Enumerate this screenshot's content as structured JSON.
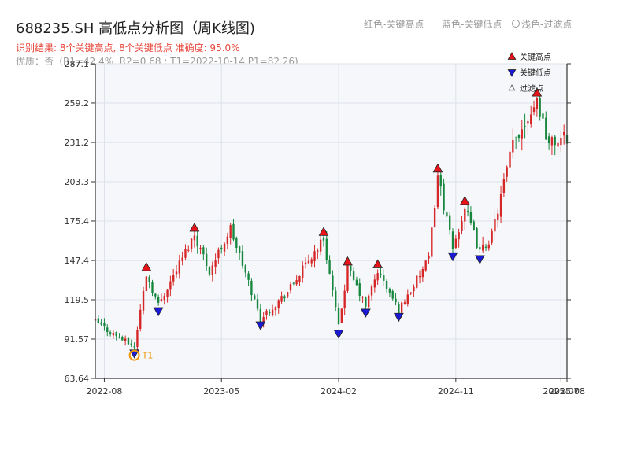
{
  "header": {
    "title": "688235.SH 高低点分析图（周K线图)",
    "subtitle_result": "识别结果: 8个关键高点, 8个关键低点  准确度: 95.0%",
    "subtitle_quality": "优质：否（R1=42.4%, R2=0.68 ; T1=2022-10-14 P1=82.26)"
  },
  "top_legend": {
    "red": "红色-关键高点",
    "blue": "蓝色-关键低点",
    "light": "浅色-过滤点"
  },
  "colors": {
    "up": "#d62728",
    "down": "#17873f",
    "high_marker": "#e8141a",
    "low_marker": "#1a1ad6",
    "t1_marker": "#f0960a",
    "plot_bg": "#f5f7fa",
    "grid": "#dde2ea"
  },
  "chart_data": {
    "type": "candlestick",
    "xlabel": "",
    "ylabel": "",
    "ylim": [
      63.64,
      287.1
    ],
    "y_ticks": [
      "63.64",
      "91.57",
      "119.5",
      "147.4",
      "175.4",
      "203.3",
      "231.2",
      "259.2",
      "287.1"
    ],
    "x_range": [
      "2022-07-15",
      "2025-07-18"
    ],
    "x_ticks": [
      {
        "date": "2022-08-05",
        "label": "2022-08"
      },
      {
        "date": "2023-05-05",
        "label": "2023-05"
      },
      {
        "date": "2024-02-02",
        "label": "2024-02"
      },
      {
        "date": "2024-11-01",
        "label": "2024-11"
      },
      {
        "date": "2025-07-04",
        "label": "2025-07"
      },
      {
        "date": "2025-07-18",
        "label": "2025-08"
      }
    ],
    "grid": true,
    "legend": {
      "placement": "top-right",
      "items": [
        {
          "label": "关键高点",
          "marker": "triangle-up",
          "color": "#e8141a"
        },
        {
          "label": "关键低点",
          "marker": "triangle-down",
          "color": "#1a1ad6"
        },
        {
          "label": "过滤点",
          "marker": "triangle-up-open",
          "color": "#999999"
        }
      ]
    },
    "anchors": [
      [
        "2022-07-15",
        104
      ],
      [
        "2022-08-12",
        98
      ],
      [
        "2022-10-14",
        86
      ],
      [
        "2022-11-11",
        138
      ],
      [
        "2022-12-09",
        116
      ],
      [
        "2023-03-03",
        166
      ],
      [
        "2023-04-07",
        140
      ],
      [
        "2023-05-26",
        170
      ],
      [
        "2023-08-04",
        106
      ],
      [
        "2023-10-06",
        125
      ],
      [
        "2023-12-29",
        163
      ],
      [
        "2024-02-02",
        100
      ],
      [
        "2024-02-23",
        142
      ],
      [
        "2024-04-05",
        115
      ],
      [
        "2024-05-03",
        140
      ],
      [
        "2024-06-21",
        112
      ],
      [
        "2024-08-30",
        148
      ],
      [
        "2024-09-20",
        208
      ],
      [
        "2024-10-25",
        155
      ],
      [
        "2024-11-22",
        185
      ],
      [
        "2024-12-27",
        153
      ],
      [
        "2025-01-24",
        165
      ],
      [
        "2025-03-14",
        230
      ],
      [
        "2025-05-09",
        262
      ],
      [
        "2025-06-06",
        230
      ],
      [
        "2025-07-18",
        235
      ]
    ],
    "key_highs": [
      {
        "date": "2022-11-11",
        "value": 138
      },
      {
        "date": "2023-03-03",
        "value": 166
      },
      {
        "date": "2023-12-29",
        "value": 163
      },
      {
        "date": "2024-02-23",
        "value": 142
      },
      {
        "date": "2024-05-03",
        "value": 140
      },
      {
        "date": "2024-09-20",
        "value": 208
      },
      {
        "date": "2024-11-22",
        "value": 185
      },
      {
        "date": "2025-05-09",
        "value": 262
      }
    ],
    "key_lows": [
      {
        "date": "2022-10-14",
        "value": 86
      },
      {
        "date": "2022-12-09",
        "value": 116
      },
      {
        "date": "2023-08-04",
        "value": 106
      },
      {
        "date": "2024-02-02",
        "value": 100
      },
      {
        "date": "2024-04-05",
        "value": 115
      },
      {
        "date": "2024-06-21",
        "value": 112
      },
      {
        "date": "2024-10-25",
        "value": 155
      },
      {
        "date": "2024-12-27",
        "value": 153
      }
    ],
    "t1": {
      "date": "2022-10-14",
      "value": 82.26,
      "label": "T1"
    }
  }
}
